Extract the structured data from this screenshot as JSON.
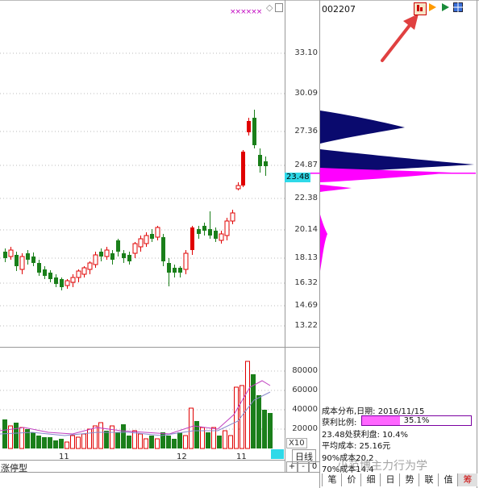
{
  "header": {
    "stock_code": "002207",
    "markers": "××××××"
  },
  "price_axis": [
    "33.10",
    "30.09",
    "27.36",
    "24.87",
    "22.38",
    "20.14",
    "18.13",
    "16.32",
    "14.69",
    "13.22"
  ],
  "current_price": "23.48",
  "volume_axis": [
    "80000",
    "60000",
    "40000",
    "20000"
  ],
  "volume_unit": "X10",
  "date_labels": [
    "11",
    "12",
    "11"
  ],
  "bottom_left_label": "涨停型",
  "period_label": "日线",
  "zoom_buttons": [
    "+",
    "-",
    "0"
  ],
  "cost_info": {
    "title": "成本分布,日期: 2016/11/15",
    "profit_label": "获利比例:",
    "profit_value": "35.1%",
    "profit_ratio": 0.351,
    "line2": "23.48处获利盘: 10.4%",
    "line3": "平均成本: 25.16元",
    "line4": "90%成本20.2",
    "line5": "70%成本14.4"
  },
  "watermark": "小范博主力行为学",
  "bottom_tabs": [
    "笔",
    "价",
    "细",
    "日",
    "势",
    "联",
    "值",
    "筹"
  ],
  "colors": {
    "up": "#e00000",
    "down": "#1a7f1a",
    "chip_blue": "#0a0a6e",
    "chip_pink": "#ff00ff",
    "current_price_bg": "#2fd9e8",
    "arrow": "#e04040"
  },
  "icons": [
    "chip-window-icon",
    "play-triangle-icon",
    "green-triangle-icon",
    "grid-icon"
  ]
}
